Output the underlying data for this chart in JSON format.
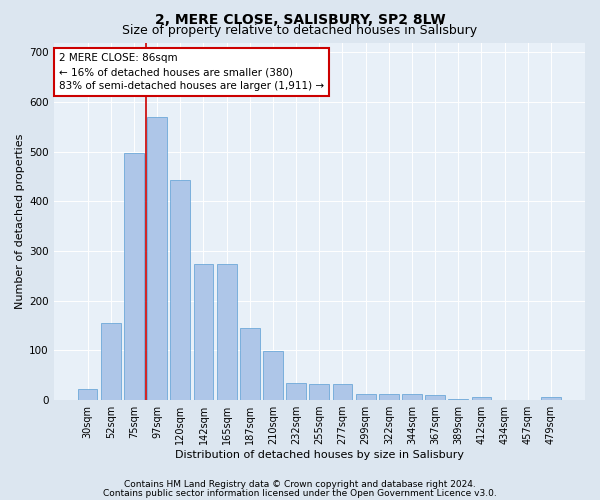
{
  "title": "2, MERE CLOSE, SALISBURY, SP2 8LW",
  "subtitle": "Size of property relative to detached houses in Salisbury",
  "xlabel": "Distribution of detached houses by size in Salisbury",
  "ylabel": "Number of detached properties",
  "footer_line1": "Contains HM Land Registry data © Crown copyright and database right 2024.",
  "footer_line2": "Contains public sector information licensed under the Open Government Licence v3.0.",
  "categories": [
    "30sqm",
    "52sqm",
    "75sqm",
    "97sqm",
    "120sqm",
    "142sqm",
    "165sqm",
    "187sqm",
    "210sqm",
    "232sqm",
    "255sqm",
    "277sqm",
    "299sqm",
    "322sqm",
    "344sqm",
    "367sqm",
    "389sqm",
    "412sqm",
    "434sqm",
    "457sqm",
    "479sqm"
  ],
  "values": [
    22,
    155,
    497,
    570,
    443,
    275,
    275,
    145,
    98,
    35,
    32,
    32,
    12,
    12,
    12,
    10,
    3,
    7,
    0,
    0,
    6
  ],
  "bar_color": "#aec6e8",
  "bar_edge_color": "#5a9fd4",
  "annotation_title": "2 MERE CLOSE: 86sqm",
  "annotation_line1": "← 16% of detached houses are smaller (380)",
  "annotation_line2": "83% of semi-detached houses are larger (1,911) →",
  "annotation_box_facecolor": "#ffffff",
  "annotation_box_edgecolor": "#cc0000",
  "vline_color": "#cc0000",
  "vline_x": 2.5,
  "ylim": [
    0,
    720
  ],
  "yticks": [
    0,
    100,
    200,
    300,
    400,
    500,
    600,
    700
  ],
  "bg_color": "#dce6f0",
  "plot_bg_color": "#e8f0f8",
  "grid_color": "#ffffff",
  "title_fontsize": 10,
  "subtitle_fontsize": 9,
  "axis_label_fontsize": 8,
  "tick_fontsize": 7,
  "footer_fontsize": 6.5,
  "annotation_fontsize": 7.5
}
